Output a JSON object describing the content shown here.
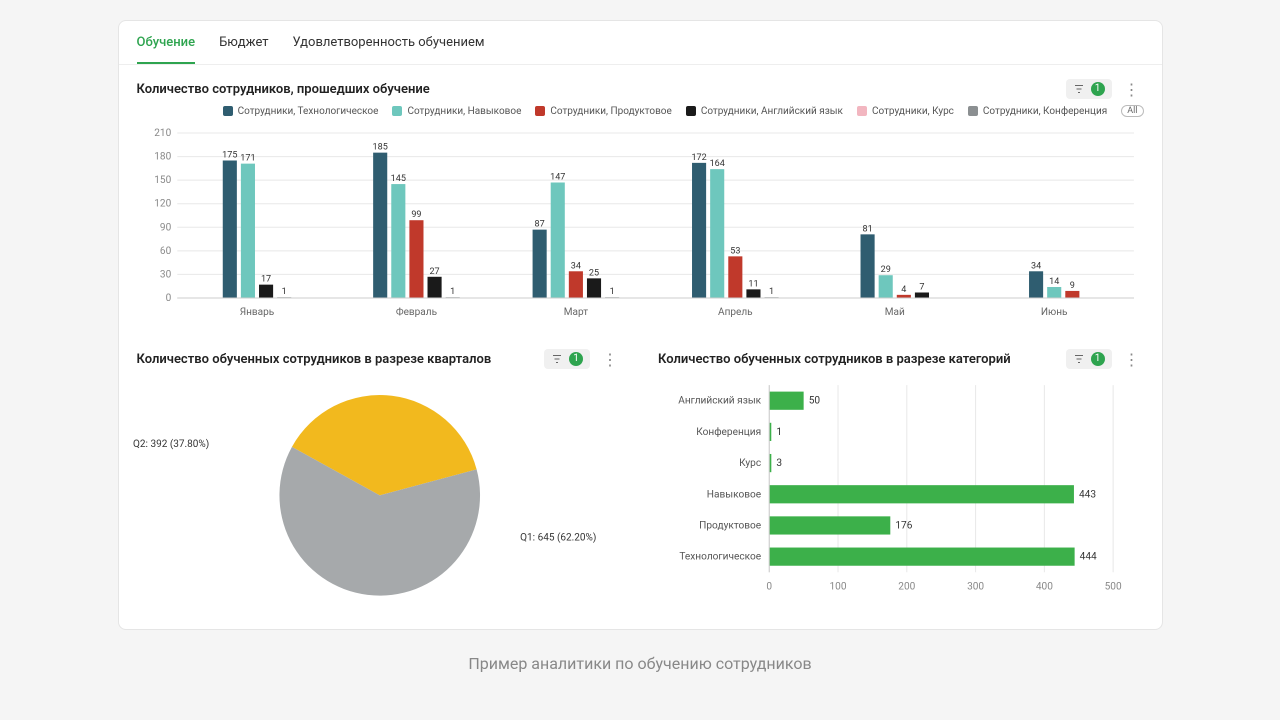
{
  "tabs": {
    "items": [
      "Обучение",
      "Бюджет",
      "Удовлетворенность обучением"
    ],
    "active_index": 0,
    "active_color": "#2ea44f"
  },
  "filter_badge": "1",
  "legend_all_label": "All",
  "caption": "Пример аналитики по обучению сотрудников",
  "colors": {
    "tech": "#2f5d70",
    "skill": "#6ec7bd",
    "product": "#c0392b",
    "english": "#1a1a1a",
    "course": "#f2b6c0",
    "conference": "#8b8f91",
    "pie_q1": "#a6a9ab",
    "pie_q2": "#f2b91e",
    "hbar": "#3cb04a",
    "grid": "#e8e8e8",
    "axis_text": "#888888",
    "background": "#ffffff"
  },
  "chart1": {
    "title": "Количество сотрудников, прошедших обучение",
    "type": "grouped-bar",
    "ylim": [
      0,
      210
    ],
    "ytick_step": 30,
    "months": [
      "Январь",
      "Февраль",
      "Март",
      "Апрель",
      "Май",
      "Июнь"
    ],
    "series": [
      {
        "key": "tech",
        "label": "Сотрудники, Технологическое"
      },
      {
        "key": "skill",
        "label": "Сотрудники, Навыковое"
      },
      {
        "key": "product",
        "label": "Сотрудники, Продуктовое"
      },
      {
        "key": "english",
        "label": "Сотрудники, Английский язык"
      },
      {
        "key": "course",
        "label": "Сотрудники, Курс"
      },
      {
        "key": "conference",
        "label": "Сотрудники, Конференция"
      }
    ],
    "data": [
      {
        "tech": 175,
        "skill": 171,
        "product": null,
        "english": 17,
        "course": null,
        "conference": 1
      },
      {
        "tech": 185,
        "skill": 145,
        "product": 99,
        "english": 27,
        "course": null,
        "conference": 1
      },
      {
        "tech": 87,
        "skill": 147,
        "product": 34,
        "english": 25,
        "course": null,
        "conference": 1
      },
      {
        "tech": 172,
        "skill": 164,
        "product": 53,
        "english": 11,
        "course": null,
        "conference": 1
      },
      {
        "tech": 81,
        "skill": 29,
        "product": 4,
        "english": 7,
        "course": null,
        "conference": null
      },
      {
        "tech": 34,
        "skill": 14,
        "product": 9,
        "english": null,
        "course": null,
        "conference": null
      }
    ]
  },
  "chart2": {
    "title": "Количество обученных сотрудников в разрезе кварталов",
    "type": "pie",
    "slices": [
      {
        "label": "Q1: 645 (62.20%)",
        "value": 62.2,
        "color_key": "pie_q1"
      },
      {
        "label": "Q2: 392 (37.80%)",
        "value": 37.8,
        "color_key": "pie_q2"
      }
    ]
  },
  "chart3": {
    "title": "Количество обученных сотрудников в разрезе категорий",
    "type": "hbar",
    "xlim": [
      0,
      500
    ],
    "xtick_step": 100,
    "categories": [
      {
        "label": "Английский язык",
        "value": 50
      },
      {
        "label": "Конференция",
        "value": 1
      },
      {
        "label": "Курс",
        "value": 3
      },
      {
        "label": "Навыковое",
        "value": 443
      },
      {
        "label": "Продуктовое",
        "value": 176
      },
      {
        "label": "Технологическое",
        "value": 444
      }
    ]
  }
}
